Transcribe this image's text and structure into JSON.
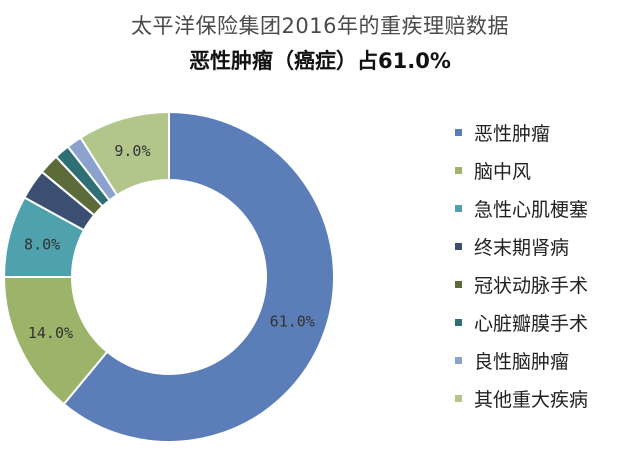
{
  "title": "太平洋保险集团2016年的重疾理赔数据",
  "subtitle": "恶性肿瘤（癌症）占61.0%",
  "chart_data": {
    "type": "pie",
    "donut": true,
    "categories": [
      "恶性肿瘤",
      "脑中风",
      "急性心肌梗塞",
      "终末期肾病",
      "冠状动脉手术",
      "心脏瓣膜手术",
      "良性脑肿瘤",
      "其他重大疾病"
    ],
    "values": [
      61.0,
      14.0,
      8.0,
      3.0,
      2.0,
      1.5,
      1.5,
      9.0
    ],
    "data_labels": [
      "61.0%",
      "14.0%",
      "8.0%",
      "",
      "",
      "",
      "",
      "9.0%"
    ],
    "colors": [
      "#5b7db8",
      "#9bb46a",
      "#4fa2ad",
      "#3b4f72",
      "#5c6b3a",
      "#2e6f73",
      "#8aa2cc",
      "#b2c68c"
    ],
    "legend_position": "right"
  }
}
